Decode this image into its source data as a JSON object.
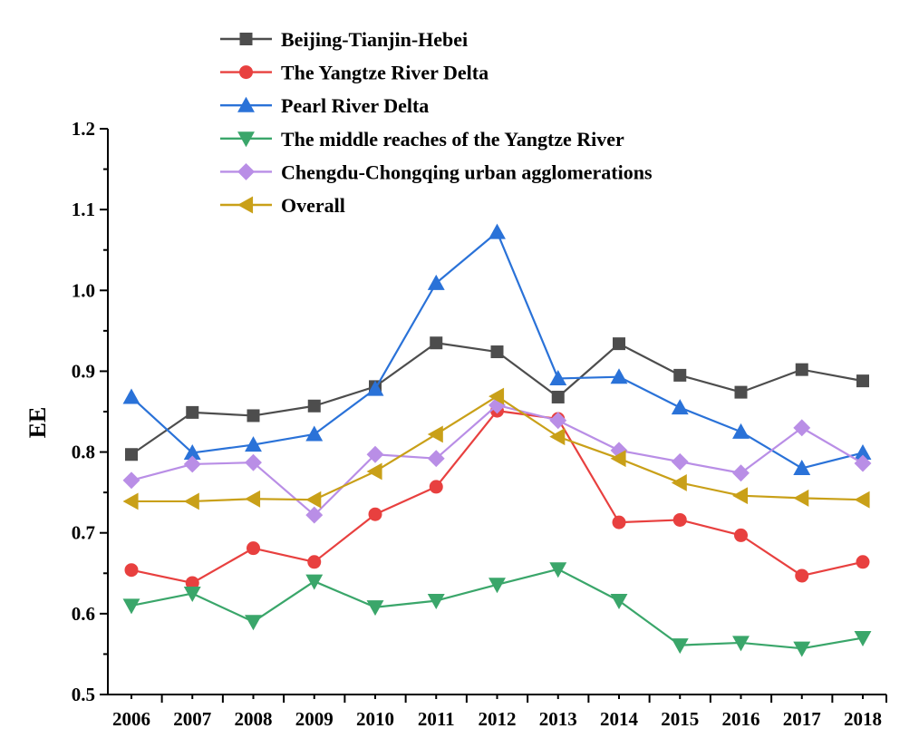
{
  "chart_data": {
    "type": "line",
    "title": "",
    "xlabel": "",
    "ylabel": "EE",
    "ylim": [
      0.5,
      1.2
    ],
    "yticks": [
      "0.5",
      "0.6",
      "0.7",
      "0.8",
      "0.9",
      "1.0",
      "1.1",
      "1.2"
    ],
    "categories": [
      "2006",
      "2007",
      "2008",
      "2009",
      "2010",
      "2011",
      "2012",
      "2013",
      "2014",
      "2015",
      "2016",
      "2017",
      "2018"
    ],
    "legend_position": "top",
    "series": [
      {
        "name": "Beijing-Tianjin-Hebei",
        "color": "#4d4d4d",
        "marker": "square",
        "values": [
          0.797,
          0.849,
          0.845,
          0.857,
          0.881,
          0.935,
          0.924,
          0.868,
          0.934,
          0.895,
          0.874,
          0.902,
          0.888
        ]
      },
      {
        "name": "The Yangtze River Delta",
        "color": "#e8403f",
        "marker": "circle",
        "values": [
          0.654,
          0.638,
          0.681,
          0.664,
          0.723,
          0.757,
          0.851,
          0.841,
          0.713,
          0.716,
          0.697,
          0.647,
          0.664
        ]
      },
      {
        "name": "Pearl River Delta",
        "color": "#2a72d8",
        "marker": "triangle-up",
        "values": [
          0.868,
          0.799,
          0.809,
          0.822,
          0.878,
          1.009,
          1.072,
          0.891,
          0.893,
          0.855,
          0.825,
          0.78,
          0.799
        ]
      },
      {
        "name": "The middle reaches of the Yangtze River",
        "color": "#3aa66a",
        "marker": "triangle-down",
        "values": [
          0.61,
          0.625,
          0.59,
          0.64,
          0.608,
          0.616,
          0.636,
          0.655,
          0.616,
          0.561,
          0.564,
          0.557,
          0.57
        ]
      },
      {
        "name": "Chengdu-Chongqing urban agglomerations",
        "color": "#b98ee6",
        "marker": "diamond",
        "values": [
          0.765,
          0.785,
          0.787,
          0.722,
          0.797,
          0.792,
          0.858,
          0.839,
          0.802,
          0.788,
          0.774,
          0.83,
          0.786
        ]
      },
      {
        "name": "Overall",
        "color": "#c9a018",
        "marker": "triangle-left",
        "values": [
          0.739,
          0.739,
          0.742,
          0.741,
          0.776,
          0.822,
          0.869,
          0.819,
          0.792,
          0.762,
          0.746,
          0.743,
          0.741
        ]
      }
    ]
  }
}
